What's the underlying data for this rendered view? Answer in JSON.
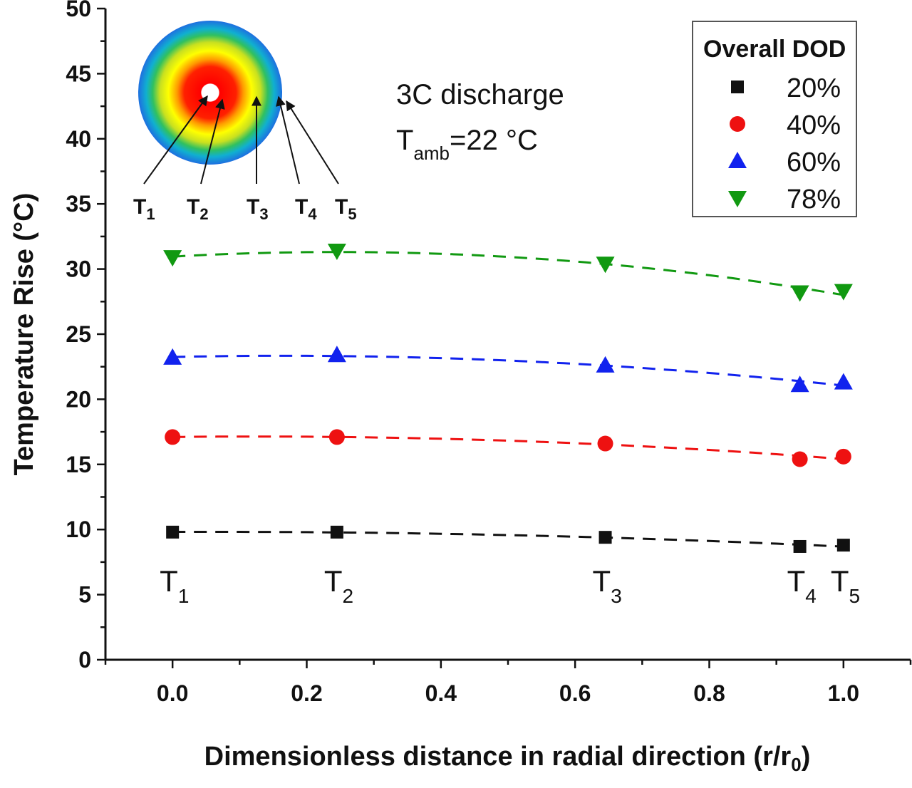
{
  "chart_data": {
    "type": "scatter",
    "xlabel": "Dimensionless distance in radial direction  (r/r",
    "xlabel_sub": "0",
    "xlabel_tail": ")",
    "ylabel": "Temperature Rise (°C)",
    "xlim": [
      -0.1,
      1.1
    ],
    "ylim": [
      0,
      50
    ],
    "x_ticks": [
      "0.0",
      "0.2",
      "0.4",
      "0.6",
      "0.8",
      "1.0"
    ],
    "y_ticks": [
      "0",
      "5",
      "10",
      "15",
      "20",
      "25",
      "30",
      "35",
      "40",
      "45",
      "50"
    ],
    "x": [
      0.0,
      0.245,
      0.645,
      0.935,
      1.0
    ],
    "legend_title": "Overall DOD",
    "legend_placement": "top-right",
    "series": [
      {
        "name": "20%",
        "marker": "square",
        "color": "#111111",
        "values": [
          9.8,
          9.8,
          9.4,
          8.7,
          8.8
        ]
      },
      {
        "name": "40%",
        "marker": "circle",
        "color": "#ee1111",
        "values": [
          17.1,
          17.1,
          16.6,
          15.4,
          15.6
        ]
      },
      {
        "name": "60%",
        "marker": "triangle-up",
        "color": "#1122ee",
        "values": [
          23.2,
          23.4,
          22.6,
          21.1,
          21.3
        ]
      },
      {
        "name": "78%",
        "marker": "triangle-down",
        "color": "#119911",
        "values": [
          30.9,
          31.4,
          30.4,
          28.2,
          28.3
        ]
      }
    ],
    "position_labels": [
      {
        "x": 0.0,
        "main": "T",
        "sub": "1"
      },
      {
        "x": 0.245,
        "main": "T",
        "sub": "2"
      },
      {
        "x": 0.645,
        "main": "T",
        "sub": "3"
      },
      {
        "x": 0.935,
        "main": "T",
        "sub": "4"
      },
      {
        "x": 1.0,
        "main": "T",
        "sub": "5"
      }
    ],
    "annotations": {
      "line1": "3C discharge",
      "line2_main": "T",
      "line2_sub": "amb",
      "line2_tail": "=22 °C"
    },
    "inset_labels": [
      {
        "main": "T",
        "sub": "1"
      },
      {
        "main": "T",
        "sub": "2"
      },
      {
        "main": "T",
        "sub": "3"
      },
      {
        "main": "T",
        "sub": "4"
      },
      {
        "main": "T",
        "sub": "5"
      }
    ],
    "grid": false
  }
}
